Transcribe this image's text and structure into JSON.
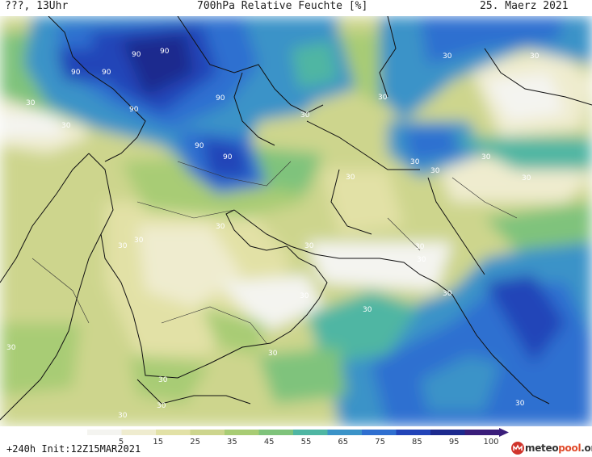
{
  "header": {
    "left": "???, 13Uhr",
    "title": "700hPa Relative Feuchte [%]",
    "date": "25. Maerz 2021"
  },
  "footer": {
    "run": "+240h  Init:12Z15MAR2021"
  },
  "brand": {
    "prefix": "meteo",
    "highlight": "pool",
    "suffix": ".org"
  },
  "legend": {
    "ticks": [
      "5",
      "15",
      "25",
      "35",
      "45",
      "55",
      "65",
      "75",
      "85",
      "95",
      "100"
    ],
    "colors": [
      "#f4f4f0",
      "#efeccf",
      "#e2e1a6",
      "#cdd58d",
      "#a8cc74",
      "#7fc37b",
      "#4fb6a3",
      "#3b93c8",
      "#2f6fd0",
      "#2244b8",
      "#1d2a8e",
      "#3a1d7a"
    ]
  },
  "contour_labels": [
    "90",
    "90",
    "90",
    "90",
    "90",
    "90",
    "90",
    "90",
    "30",
    "30",
    "30",
    "30",
    "30",
    "30",
    "30",
    "30",
    "30",
    "30",
    "30",
    "30",
    "30",
    "30",
    "30",
    "30",
    "30",
    "30",
    "30",
    "30",
    "30",
    "30",
    "30",
    "30",
    "30",
    "30"
  ]
}
